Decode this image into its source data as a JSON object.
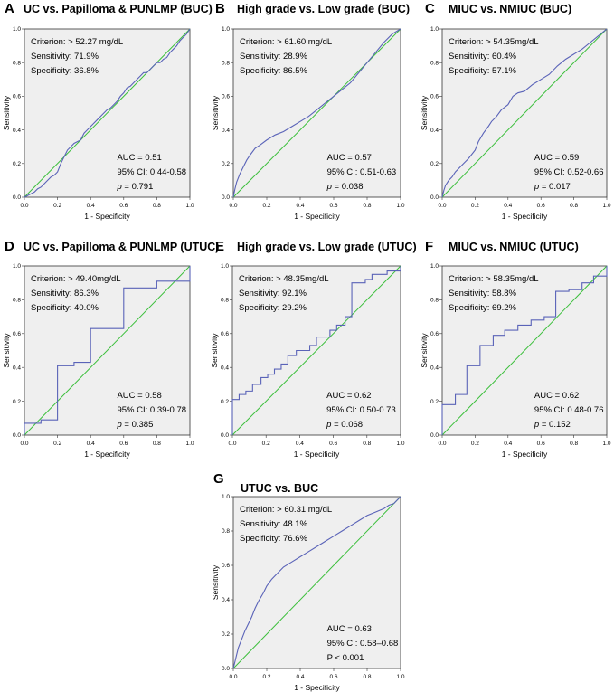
{
  "colors": {
    "roc": "#5a63b8",
    "diagonal": "#3cbf3c",
    "plot_bg": "#efefef",
    "frame": "#333333"
  },
  "chart_data": [
    {
      "type": "line",
      "panel": "A",
      "title": "UC vs. Papilloma & PUNLMP (BUC)",
      "xlabel": "1 - Specificity",
      "ylabel": "Sensitivity",
      "xlim": [
        0,
        1
      ],
      "ylim": [
        0,
        1
      ],
      "x_ticks": [
        "0.0",
        "0.2",
        "0.4",
        "0.6",
        "0.8",
        "1.0"
      ],
      "y_ticks": [
        "0.0",
        "0.2",
        "0.4",
        "0.6",
        "0.8",
        "1.0"
      ],
      "criterion": "Criterion: > 52.27 mg/dL",
      "sensitivity": "Sensitivity: 71.9%",
      "specificity": "Specificity: 36.8%",
      "auc": "AUC = 0.51",
      "ci": "95% CI: 0.44-0.58",
      "p_label": "p",
      "p_value": " = 0.791",
      "series": [
        {
          "name": "ROC",
          "x": [
            0,
            0.02,
            0.04,
            0.06,
            0.08,
            0.1,
            0.12,
            0.14,
            0.16,
            0.18,
            0.2,
            0.22,
            0.24,
            0.26,
            0.28,
            0.3,
            0.32,
            0.34,
            0.36,
            0.38,
            0.4,
            0.42,
            0.44,
            0.46,
            0.48,
            0.5,
            0.52,
            0.54,
            0.56,
            0.58,
            0.6,
            0.62,
            0.64,
            0.66,
            0.68,
            0.7,
            0.72,
            0.74,
            0.76,
            0.78,
            0.8,
            0.82,
            0.84,
            0.86,
            0.88,
            0.9,
            0.92,
            0.94,
            0.96,
            0.98,
            1.0
          ],
          "y": [
            0,
            0.01,
            0.02,
            0.03,
            0.05,
            0.06,
            0.08,
            0.1,
            0.12,
            0.13,
            0.15,
            0.2,
            0.24,
            0.28,
            0.3,
            0.32,
            0.33,
            0.34,
            0.38,
            0.4,
            0.42,
            0.44,
            0.46,
            0.48,
            0.5,
            0.52,
            0.53,
            0.55,
            0.57,
            0.6,
            0.62,
            0.65,
            0.66,
            0.68,
            0.7,
            0.72,
            0.74,
            0.74,
            0.76,
            0.78,
            0.8,
            0.8,
            0.82,
            0.83,
            0.86,
            0.88,
            0.9,
            0.93,
            0.95,
            0.97,
            1.0
          ]
        }
      ]
    },
    {
      "type": "line",
      "panel": "B",
      "title": "High grade vs. Low grade (BUC)",
      "xlabel": "1 - Specificity",
      "ylabel": "Sensitivity",
      "xlim": [
        0,
        1
      ],
      "ylim": [
        0,
        1
      ],
      "x_ticks": [
        "0.0",
        "0.2",
        "0.4",
        "0.6",
        "0.8",
        "1.0"
      ],
      "y_ticks": [
        "0.0",
        "0.2",
        "0.4",
        "0.6",
        "0.8",
        "1.0"
      ],
      "criterion": "Criterion: > 61.60 mg/dL",
      "sensitivity": "Sensitivity: 28.9%",
      "specificity": "Specificity: 86.5%",
      "auc": "AUC = 0.57",
      "ci": "95% CI: 0.51-0.63",
      "p_label": "p",
      "p_value": " = 0.038",
      "series": [
        {
          "name": "ROC",
          "x": [
            0,
            0.01,
            0.02,
            0.04,
            0.06,
            0.08,
            0.1,
            0.13,
            0.16,
            0.2,
            0.25,
            0.3,
            0.35,
            0.4,
            0.45,
            0.5,
            0.55,
            0.6,
            0.65,
            0.7,
            0.75,
            0.8,
            0.85,
            0.9,
            0.95,
            1.0
          ],
          "y": [
            0,
            0.05,
            0.09,
            0.14,
            0.18,
            0.22,
            0.25,
            0.29,
            0.31,
            0.34,
            0.37,
            0.39,
            0.42,
            0.45,
            0.48,
            0.52,
            0.56,
            0.6,
            0.64,
            0.68,
            0.74,
            0.8,
            0.86,
            0.92,
            0.97,
            1.0
          ]
        }
      ]
    },
    {
      "type": "line",
      "panel": "C",
      "title": "MIUC vs. NMIUC (BUC)",
      "xlabel": "1 - Specificity",
      "ylabel": "Sensitivity",
      "xlim": [
        0,
        1
      ],
      "ylim": [
        0,
        1
      ],
      "x_ticks": [
        "0.0",
        "0.2",
        "0.4",
        "0.6",
        "0.8",
        "1.0"
      ],
      "y_ticks": [
        "0.0",
        "0.2",
        "0.4",
        "0.6",
        "0.8",
        "1.0"
      ],
      "criterion": "Criterion: > 54.35mg/dL",
      "sensitivity": "Sensitivity: 60.4%",
      "specificity": "Specificity: 57.1%",
      "auc": "AUC = 0.59",
      "ci": "95% CI: 0.52-0.66",
      "p_label": "p",
      "p_value": " = 0.017",
      "series": [
        {
          "name": "ROC",
          "x": [
            0,
            0.01,
            0.02,
            0.04,
            0.06,
            0.08,
            0.1,
            0.13,
            0.16,
            0.2,
            0.22,
            0.25,
            0.28,
            0.3,
            0.33,
            0.36,
            0.4,
            0.43,
            0.46,
            0.5,
            0.55,
            0.6,
            0.65,
            0.7,
            0.75,
            0.8,
            0.85,
            0.9,
            0.95,
            1.0
          ],
          "y": [
            0,
            0.04,
            0.07,
            0.1,
            0.12,
            0.15,
            0.17,
            0.2,
            0.23,
            0.28,
            0.33,
            0.38,
            0.42,
            0.45,
            0.48,
            0.52,
            0.55,
            0.6,
            0.62,
            0.63,
            0.67,
            0.7,
            0.73,
            0.78,
            0.82,
            0.85,
            0.88,
            0.92,
            0.96,
            1.0
          ]
        }
      ]
    },
    {
      "type": "line",
      "panel": "D",
      "title": "UC vs. Papilloma & PUNLMP (UTUC)",
      "xlabel": "1 - Specificity",
      "ylabel": "Sensitivity",
      "xlim": [
        0,
        1
      ],
      "ylim": [
        0,
        1
      ],
      "x_ticks": [
        "0.0",
        "0.2",
        "0.4",
        "0.6",
        "0.8",
        "1.0"
      ],
      "y_ticks": [
        "0.0",
        "0.2",
        "0.4",
        "0.6",
        "0.8",
        "1.0"
      ],
      "criterion": "Criterion: > 49.40mg/dL",
      "sensitivity": "Sensitivity: 86.3%",
      "specificity": "Specificity: 40.0%",
      "auc": "AUC = 0.58",
      "ci": "95% CI: 0.39-0.78",
      "p_label": "p",
      "p_value": " = 0.385",
      "series": [
        {
          "name": "ROC",
          "x": [
            0,
            0,
            0.1,
            0.1,
            0.2,
            0.2,
            0.3,
            0.3,
            0.4,
            0.4,
            0.6,
            0.6,
            0.8,
            0.8,
            1.0,
            1.0
          ],
          "y": [
            0,
            0.07,
            0.07,
            0.09,
            0.09,
            0.41,
            0.41,
            0.43,
            0.43,
            0.63,
            0.63,
            0.87,
            0.87,
            0.91,
            0.91,
            1.0
          ]
        }
      ]
    },
    {
      "type": "line",
      "panel": "E",
      "title": "High grade vs. Low grade (UTUC)",
      "xlabel": "1 - Specificity",
      "ylabel": "Sensitivity",
      "xlim": [
        0,
        1
      ],
      "ylim": [
        0,
        1
      ],
      "x_ticks": [
        "0.0",
        "0.2",
        "0.4",
        "0.6",
        "0.8",
        "1.0"
      ],
      "y_ticks": [
        "0.0",
        "0.2",
        "0.4",
        "0.6",
        "0.8",
        "1.0"
      ],
      "criterion": "Criterion: > 48.35mg/dL",
      "sensitivity": "Sensitivity: 92.1%",
      "specificity": "Specificity: 29.2%",
      "auc": "AUC = 0.62",
      "ci": "95% CI: 0.50-0.73",
      "p_label": "p",
      "p_value": " = 0.068",
      "series": [
        {
          "name": "ROC",
          "x": [
            0,
            0,
            0.04,
            0.04,
            0.08,
            0.08,
            0.12,
            0.12,
            0.17,
            0.17,
            0.21,
            0.21,
            0.25,
            0.25,
            0.29,
            0.29,
            0.33,
            0.33,
            0.38,
            0.38,
            0.46,
            0.46,
            0.5,
            0.5,
            0.58,
            0.58,
            0.62,
            0.62,
            0.67,
            0.67,
            0.71,
            0.71,
            0.79,
            0.79,
            0.83,
            0.83,
            0.92,
            0.92,
            1.0,
            1.0
          ],
          "y": [
            0,
            0.21,
            0.21,
            0.24,
            0.24,
            0.26,
            0.26,
            0.3,
            0.3,
            0.34,
            0.34,
            0.36,
            0.36,
            0.39,
            0.39,
            0.42,
            0.42,
            0.47,
            0.47,
            0.5,
            0.5,
            0.53,
            0.53,
            0.58,
            0.58,
            0.62,
            0.62,
            0.65,
            0.65,
            0.7,
            0.7,
            0.9,
            0.9,
            0.92,
            0.92,
            0.95,
            0.95,
            0.97,
            0.97,
            1.0
          ]
        }
      ]
    },
    {
      "type": "line",
      "panel": "F",
      "title": "MIUC vs. NMIUC (UTUC)",
      "xlabel": "1 - Specificity",
      "ylabel": "Sensitivity",
      "xlim": [
        0,
        1
      ],
      "ylim": [
        0,
        1
      ],
      "x_ticks": [
        "0.0",
        "0.2",
        "0.4",
        "0.6",
        "0.8",
        "1.0"
      ],
      "y_ticks": [
        "0.0",
        "0.2",
        "0.4",
        "0.6",
        "0.8",
        "1.0"
      ],
      "criterion": "Criterion: > 58.35mg/dL",
      "sensitivity": "Sensitivity: 58.8%",
      "specificity": "Specificity: 69.2%",
      "auc": "AUC = 0.62",
      "ci": "95% CI: 0.48-0.76",
      "p_label": "p",
      "p_value": " = 0.152",
      "series": [
        {
          "name": "ROC",
          "x": [
            0,
            0,
            0.08,
            0.08,
            0.15,
            0.15,
            0.23,
            0.23,
            0.31,
            0.31,
            0.38,
            0.38,
            0.46,
            0.46,
            0.54,
            0.54,
            0.62,
            0.62,
            0.69,
            0.69,
            0.77,
            0.77,
            0.85,
            0.85,
            0.92,
            0.92,
            1.0,
            1.0
          ],
          "y": [
            0,
            0.18,
            0.18,
            0.24,
            0.24,
            0.41,
            0.41,
            0.53,
            0.53,
            0.59,
            0.59,
            0.62,
            0.62,
            0.65,
            0.65,
            0.68,
            0.68,
            0.7,
            0.7,
            0.85,
            0.85,
            0.86,
            0.86,
            0.9,
            0.9,
            0.94,
            0.94,
            1.0
          ]
        }
      ]
    },
    {
      "type": "line",
      "panel": "G",
      "title": "UTUC vs. BUC",
      "xlabel": "1 - Specificity",
      "ylabel": "Sensitivity",
      "xlim": [
        0,
        1
      ],
      "ylim": [
        0,
        1
      ],
      "x_ticks": [
        "0.0",
        "0.2",
        "0.4",
        "0.6",
        "0.8",
        "1.0"
      ],
      "y_ticks": [
        "0.0",
        "0.2",
        "0.4",
        "0.6",
        "0.8",
        "1.0"
      ],
      "criterion": "Criterion: > 60.31 mg/dL",
      "sensitivity": "Sensitivity: 48.1%",
      "specificity": "Specificity: 76.6%",
      "auc": "AUC = 0.63",
      "ci": "95% CI: 0.58–0.68",
      "p_label": "P",
      "p_value": " < 0.001",
      "series": [
        {
          "name": "ROC",
          "x": [
            0,
            0.01,
            0.02,
            0.03,
            0.05,
            0.07,
            0.09,
            0.11,
            0.13,
            0.15,
            0.18,
            0.2,
            0.23,
            0.26,
            0.3,
            0.35,
            0.4,
            0.45,
            0.5,
            0.55,
            0.6,
            0.65,
            0.7,
            0.75,
            0.8,
            0.85,
            0.9,
            0.93,
            0.96,
            0.98,
            1.0
          ],
          "y": [
            0,
            0.04,
            0.08,
            0.12,
            0.17,
            0.22,
            0.26,
            0.3,
            0.35,
            0.39,
            0.44,
            0.48,
            0.52,
            0.55,
            0.59,
            0.62,
            0.65,
            0.68,
            0.71,
            0.74,
            0.77,
            0.8,
            0.83,
            0.86,
            0.89,
            0.91,
            0.93,
            0.95,
            0.96,
            0.98,
            1.0
          ]
        }
      ]
    }
  ]
}
